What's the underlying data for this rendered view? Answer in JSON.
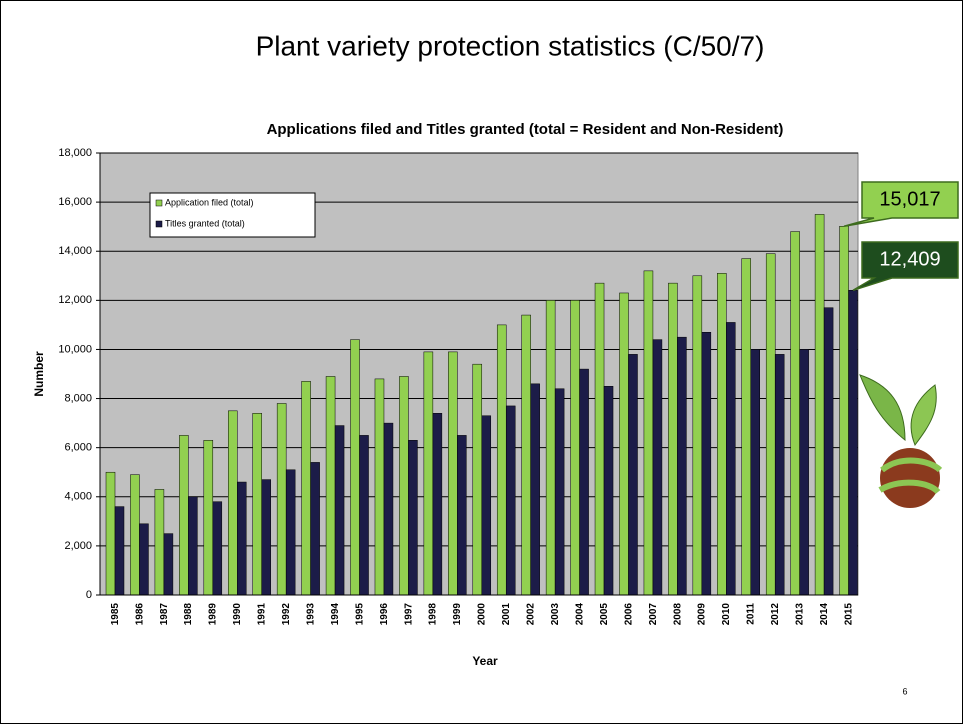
{
  "slide_title": "Plant variety protection statistics (C/50/7)",
  "page_number": "6",
  "chart_data": {
    "type": "bar",
    "title": "Applications filed and Titles granted (total = Resident and Non-Resident)",
    "x_label": "Year",
    "y_label": "Number",
    "categories": [
      "1985",
      "1986",
      "1987",
      "1988",
      "1989",
      "1990",
      "1991",
      "1992",
      "1993",
      "1994",
      "1995",
      "1996",
      "1997",
      "1998",
      "1999",
      "2000",
      "2001",
      "2002",
      "2003",
      "2004",
      "2005",
      "2006",
      "2007",
      "2008",
      "2009",
      "2010",
      "2011",
      "2012",
      "2013",
      "2014",
      "2015"
    ],
    "series": [
      {
        "name": "Application filed (total)",
        "color": "#92d050",
        "values": [
          5000,
          4900,
          4300,
          6500,
          6300,
          7500,
          7400,
          7800,
          8700,
          8900,
          10400,
          8800,
          8900,
          9900,
          9900,
          9400,
          11000,
          11400,
          12000,
          12000,
          12700,
          12300,
          13200,
          12700,
          13000,
          13100,
          13700,
          13900,
          14800,
          15500,
          15017
        ],
        "value_labels": [
          null,
          null,
          null,
          null,
          null,
          null,
          null,
          null,
          null,
          null,
          null,
          null,
          null,
          null,
          null,
          null,
          null,
          null,
          null,
          null,
          null,
          null,
          null,
          null,
          null,
          null,
          null,
          null,
          null,
          null,
          "15,017"
        ]
      },
      {
        "name": "Titles granted (total)",
        "color": "#1c1c48",
        "values": [
          3600,
          2900,
          2500,
          4000,
          3800,
          4600,
          4700,
          5100,
          5400,
          6900,
          6500,
          7000,
          6300,
          7400,
          6500,
          7300,
          7700,
          8600,
          8400,
          9200,
          8500,
          9800,
          10400,
          10500,
          10700,
          11100,
          10000,
          9800,
          10000,
          11700,
          12409
        ],
        "value_labels": [
          null,
          null,
          null,
          null,
          null,
          null,
          null,
          null,
          null,
          null,
          null,
          null,
          null,
          null,
          null,
          null,
          null,
          null,
          null,
          null,
          null,
          null,
          null,
          null,
          null,
          null,
          null,
          null,
          null,
          null,
          "12,409"
        ]
      }
    ],
    "ylim": [
      0,
      18000
    ],
    "yticks": [
      0,
      {
        "value": 2000,
        "label": "2,000"
      },
      {
        "value": 4000,
        "label": "4,000"
      },
      {
        "value": 6000,
        "label": "6,000"
      },
      {
        "value": 8000,
        "label": "8,000"
      },
      {
        "value": 10000,
        "label": "10,000"
      },
      {
        "value": 12000,
        "label": "12,000"
      },
      {
        "value": 14000,
        "label": "14,000"
      },
      {
        "value": 16000,
        "label": "16,000"
      },
      {
        "value": 18000,
        "label": "18,000"
      }
    ],
    "grid": true
  }
}
